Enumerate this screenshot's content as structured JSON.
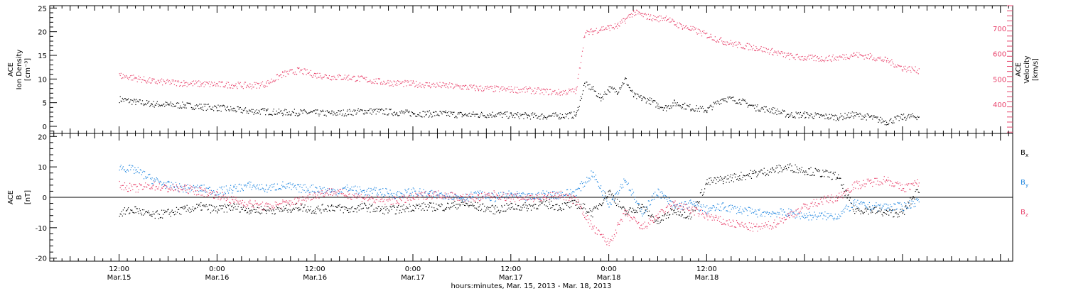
{
  "chart_data": [
    {
      "type": "scatter",
      "panel": "top",
      "ylabel_left": [
        "ACE",
        "Ion Density",
        "[cm⁻³]"
      ],
      "ylabel_right": [
        "ACE",
        "Velocity",
        "[km/s]"
      ],
      "ylim_left": [
        -1.5,
        25.5
      ],
      "ylim_right": [
        285,
        790
      ],
      "yticks_left": [
        0,
        5,
        10,
        15,
        20,
        25
      ],
      "yticks_right": [
        400,
        500,
        600,
        700
      ],
      "series": [
        {
          "axis": "left",
          "color": "#000000",
          "points": [
            [
              0,
              5.8
            ],
            [
              2,
              5.2
            ],
            [
              4,
              4.8
            ],
            [
              6,
              4.6
            ],
            [
              8,
              4.5
            ],
            [
              10,
              4.2
            ],
            [
              12,
              4.0
            ],
            [
              14,
              3.6
            ],
            [
              16,
              3.3
            ],
            [
              18,
              3.2
            ],
            [
              20,
              3.0
            ],
            [
              22,
              3.0
            ],
            [
              24,
              2.9
            ],
            [
              26,
              2.8
            ],
            [
              28,
              3.0
            ],
            [
              30,
              3.3
            ],
            [
              32,
              3.2
            ],
            [
              34,
              3.0
            ],
            [
              36,
              2.8
            ],
            [
              38,
              2.7
            ],
            [
              40,
              2.7
            ],
            [
              42,
              2.5
            ],
            [
              44,
              2.5
            ],
            [
              46,
              2.6
            ],
            [
              48,
              2.4
            ],
            [
              50,
              2.3
            ],
            [
              52,
              2.2
            ],
            [
              54,
              2.3
            ],
            [
              56,
              2.5
            ],
            [
              57,
              9.0
            ],
            [
              58,
              8.0
            ],
            [
              59,
              6.0
            ],
            [
              60,
              8.0
            ],
            [
              61,
              7.5
            ],
            [
              62,
              10.0
            ],
            [
              63,
              6.5
            ],
            [
              64,
              6.0
            ],
            [
              65,
              5.5
            ],
            [
              66,
              4.5
            ],
            [
              67,
              4.0
            ],
            [
              68,
              5.0
            ],
            [
              69,
              4.5
            ],
            [
              70,
              4.0
            ],
            [
              72,
              3.5
            ],
            [
              74,
              6.0
            ],
            [
              76,
              5.5
            ],
            [
              78,
              4.0
            ],
            [
              80,
              3.5
            ],
            [
              82,
              2.5
            ],
            [
              84,
              2.5
            ],
            [
              86,
              2.2
            ],
            [
              88,
              2.0
            ],
            [
              90,
              2.5
            ],
            [
              92,
              2.0
            ],
            [
              94,
              1.0
            ],
            [
              96,
              2.0
            ],
            [
              98,
              2.2
            ]
          ]
        },
        {
          "axis": "right",
          "color": "#e8436c",
          "points": [
            [
              0,
              515
            ],
            [
              2,
              505
            ],
            [
              4,
              492
            ],
            [
              6,
              488
            ],
            [
              8,
              485
            ],
            [
              10,
              482
            ],
            [
              12,
              480
            ],
            [
              14,
              478
            ],
            [
              16,
              475
            ],
            [
              18,
              482
            ],
            [
              20,
              520
            ],
            [
              22,
              535
            ],
            [
              24,
              518
            ],
            [
              26,
              510
            ],
            [
              28,
              508
            ],
            [
              30,
              500
            ],
            [
              32,
              490
            ],
            [
              34,
              485
            ],
            [
              36,
              482
            ],
            [
              38,
              478
            ],
            [
              40,
              475
            ],
            [
              42,
              470
            ],
            [
              44,
              465
            ],
            [
              46,
              462
            ],
            [
              48,
              460
            ],
            [
              50,
              458
            ],
            [
              52,
              452
            ],
            [
              54,
              448
            ],
            [
              56,
              455
            ],
            [
              57,
              680
            ],
            [
              58,
              690
            ],
            [
              59,
              700
            ],
            [
              60,
              705
            ],
            [
              61,
              710
            ],
            [
              62,
              735
            ],
            [
              63,
              765
            ],
            [
              64,
              755
            ],
            [
              65,
              745
            ],
            [
              66,
              740
            ],
            [
              67,
              745
            ],
            [
              68,
              720
            ],
            [
              69,
              710
            ],
            [
              70,
              700
            ],
            [
              72,
              675
            ],
            [
              74,
              650
            ],
            [
              76,
              635
            ],
            [
              78,
              625
            ],
            [
              80,
              610
            ],
            [
              82,
              592
            ],
            [
              84,
              585
            ],
            [
              86,
              582
            ],
            [
              88,
              585
            ],
            [
              90,
              598
            ],
            [
              92,
              590
            ],
            [
              94,
              575
            ],
            [
              96,
              545
            ],
            [
              98,
              535
            ]
          ]
        }
      ]
    },
    {
      "type": "scatter",
      "panel": "bottom",
      "ylabel_left": [
        "ACE",
        "B",
        "[nT]"
      ],
      "ylim": [
        -21,
        21
      ],
      "yticks": [
        -20,
        -10,
        0,
        10,
        20
      ],
      "legend": [
        {
          "label": "B",
          "sub": "x",
          "color": "#000000"
        },
        {
          "label": "B",
          "sub": "y",
          "color": "#1f86e0"
        },
        {
          "label": "B",
          "sub": "z",
          "color": "#e8436c"
        }
      ],
      "series": [
        {
          "name": "Bx",
          "color": "#000000",
          "points": [
            [
              0,
              -5
            ],
            [
              2,
              -4
            ],
            [
              4,
              -6
            ],
            [
              6,
              -5
            ],
            [
              8,
              -4
            ],
            [
              10,
              -3
            ],
            [
              12,
              -4
            ],
            [
              14,
              -3
            ],
            [
              16,
              -4
            ],
            [
              18,
              -4
            ],
            [
              20,
              -4
            ],
            [
              22,
              -3
            ],
            [
              24,
              -4
            ],
            [
              26,
              -3
            ],
            [
              28,
              -4
            ],
            [
              30,
              -3
            ],
            [
              32,
              -4
            ],
            [
              34,
              -4
            ],
            [
              36,
              -3
            ],
            [
              38,
              -3
            ],
            [
              40,
              -3
            ],
            [
              42,
              -2
            ],
            [
              44,
              -3
            ],
            [
              46,
              -4
            ],
            [
              48,
              -3
            ],
            [
              50,
              -3
            ],
            [
              52,
              -2
            ],
            [
              54,
              -3
            ],
            [
              56,
              -2
            ],
            [
              58,
              -5
            ],
            [
              60,
              2
            ],
            [
              62,
              -5
            ],
            [
              64,
              -3
            ],
            [
              66,
              -8
            ],
            [
              68,
              -4
            ],
            [
              70,
              -6
            ],
            [
              72,
              5
            ],
            [
              74,
              6
            ],
            [
              76,
              7
            ],
            [
              78,
              8
            ],
            [
              80,
              9
            ],
            [
              82,
              10
            ],
            [
              84,
              9
            ],
            [
              86,
              8
            ],
            [
              88,
              7
            ],
            [
              90,
              -4
            ],
            [
              92,
              -4
            ],
            [
              94,
              -5
            ],
            [
              96,
              -5
            ],
            [
              98,
              3
            ]
          ]
        },
        {
          "name": "By",
          "color": "#1f86e0",
          "points": [
            [
              0,
              10
            ],
            [
              2,
              9
            ],
            [
              4,
              6
            ],
            [
              6,
              4
            ],
            [
              8,
              3
            ],
            [
              10,
              3
            ],
            [
              12,
              2
            ],
            [
              14,
              3
            ],
            [
              16,
              4
            ],
            [
              18,
              3
            ],
            [
              20,
              4
            ],
            [
              22,
              3
            ],
            [
              24,
              3
            ],
            [
              26,
              2
            ],
            [
              28,
              3
            ],
            [
              30,
              2
            ],
            [
              32,
              2
            ],
            [
              34,
              1
            ],
            [
              36,
              2
            ],
            [
              38,
              1
            ],
            [
              40,
              1
            ],
            [
              42,
              0
            ],
            [
              44,
              1
            ],
            [
              46,
              0
            ],
            [
              48,
              1
            ],
            [
              50,
              0
            ],
            [
              52,
              1
            ],
            [
              54,
              1
            ],
            [
              56,
              2
            ],
            [
              58,
              8
            ],
            [
              60,
              -2
            ],
            [
              62,
              6
            ],
            [
              64,
              -5
            ],
            [
              66,
              2
            ],
            [
              68,
              -3
            ],
            [
              70,
              -2
            ],
            [
              72,
              -4
            ],
            [
              74,
              -3
            ],
            [
              76,
              -4
            ],
            [
              78,
              -5
            ],
            [
              80,
              -5
            ],
            [
              82,
              -5
            ],
            [
              84,
              -6
            ],
            [
              86,
              -6
            ],
            [
              88,
              -6
            ],
            [
              90,
              -2
            ],
            [
              92,
              -3
            ],
            [
              94,
              -3
            ],
            [
              96,
              -3
            ],
            [
              98,
              -1
            ]
          ]
        },
        {
          "name": "Bz",
          "color": "#e8436c",
          "points": [
            [
              0,
              4
            ],
            [
              2,
              3
            ],
            [
              4,
              4
            ],
            [
              6,
              3
            ],
            [
              8,
              3
            ],
            [
              10,
              2
            ],
            [
              12,
              1
            ],
            [
              14,
              -1
            ],
            [
              16,
              -2
            ],
            [
              18,
              -3
            ],
            [
              20,
              -2
            ],
            [
              22,
              -1
            ],
            [
              24,
              1
            ],
            [
              26,
              2
            ],
            [
              28,
              1
            ],
            [
              30,
              0
            ],
            [
              32,
              -1
            ],
            [
              34,
              -1
            ],
            [
              36,
              0
            ],
            [
              38,
              1
            ],
            [
              40,
              1
            ],
            [
              42,
              0
            ],
            [
              44,
              0
            ],
            [
              46,
              1
            ],
            [
              48,
              0
            ],
            [
              50,
              0
            ],
            [
              52,
              0
            ],
            [
              54,
              1
            ],
            [
              56,
              -1
            ],
            [
              58,
              -10
            ],
            [
              60,
              -15
            ],
            [
              62,
              -5
            ],
            [
              64,
              -10
            ],
            [
              66,
              -6
            ],
            [
              68,
              -2
            ],
            [
              70,
              -4
            ],
            [
              72,
              -6
            ],
            [
              74,
              -8
            ],
            [
              76,
              -9
            ],
            [
              78,
              -10
            ],
            [
              80,
              -9
            ],
            [
              82,
              -6
            ],
            [
              84,
              -3
            ],
            [
              86,
              -1
            ],
            [
              88,
              0
            ],
            [
              90,
              4
            ],
            [
              92,
              5
            ],
            [
              94,
              6
            ],
            [
              96,
              3
            ],
            [
              98,
              5
            ]
          ]
        }
      ]
    }
  ],
  "x_axis": {
    "xlim_hours": [
      -8.5,
      109.5
    ],
    "major_ticks": [
      {
        "hours": 0,
        "time": "12:00",
        "date": "Mar.15"
      },
      {
        "hours": 12,
        "time": "0:00",
        "date": "Mar.16"
      },
      {
        "hours": 24,
        "time": "12:00",
        "date": "Mar.16"
      },
      {
        "hours": 36,
        "time": "0:00",
        "date": "Mar.17"
      },
      {
        "hours": 48,
        "time": "12:00",
        "date": "Mar.17"
      },
      {
        "hours": 60,
        "time": "0:00",
        "date": "Mar.18"
      },
      {
        "hours": 72,
        "time": "12:00",
        "date": "Mar.18"
      }
    ],
    "title": "hours:minutes, Mar. 15, 2013 - Mar. 18, 2013"
  },
  "colors": {
    "density": "#000000",
    "velocity": "#e8436c",
    "bx": "#000000",
    "by": "#1f86e0",
    "bz": "#e8436c"
  }
}
